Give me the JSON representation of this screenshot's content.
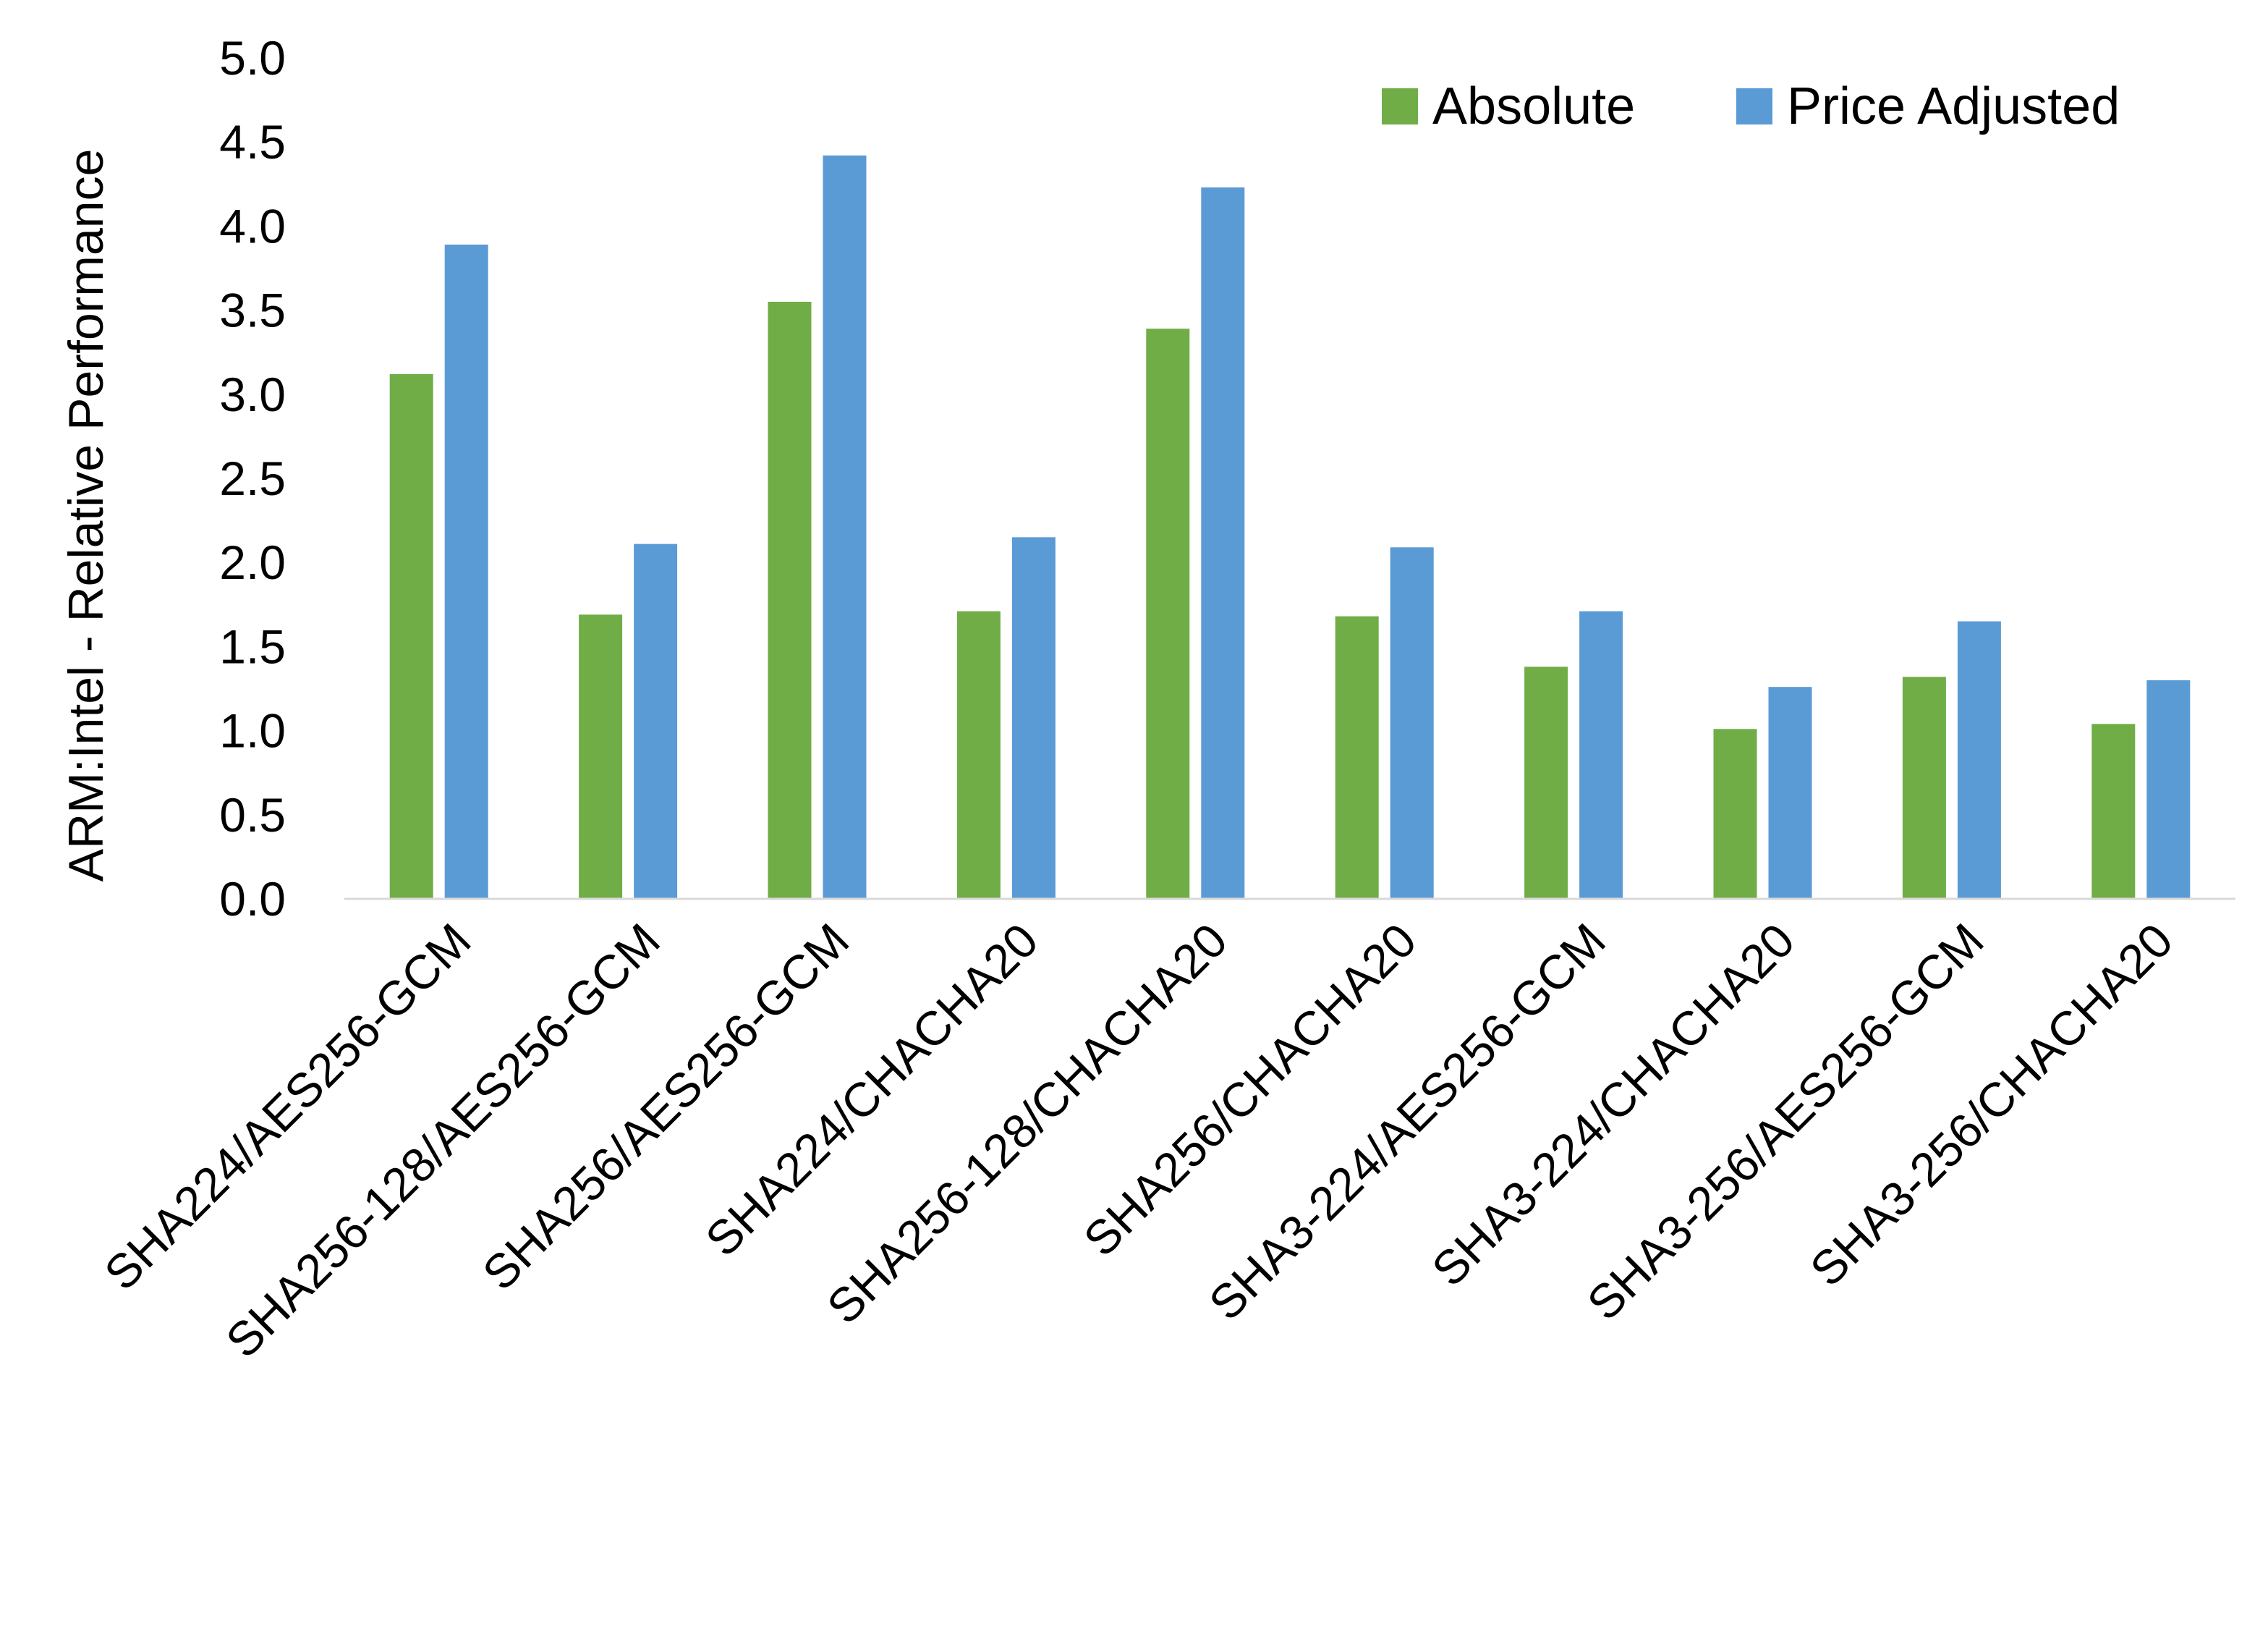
{
  "chart_data": {
    "type": "bar",
    "title": "",
    "xlabel": "",
    "ylabel": "ARM:Intel - Relative Performance",
    "ylim": [
      0,
      5
    ],
    "yticks": [
      "0.0",
      "0.5",
      "1.0",
      "1.5",
      "2.0",
      "2.5",
      "3.0",
      "3.5",
      "4.0",
      "4.5",
      "5.0"
    ],
    "grid": false,
    "legend_position": "top-right",
    "categories": [
      "SHA224/AES256-GCM",
      "SHA256-128/AES256-GCM",
      "SHA256/AES256-GCM",
      "SHA224/CHACHA20",
      "SHA256-128/CHACHA20",
      "SHA256/CHACHA20",
      "SHA3-224/AES256-GCM",
      "SHA3-224/CHACHA20",
      "SHA3-256/AES256-GCM",
      "SHA3-256/CHACHA20"
    ],
    "series": [
      {
        "name": "Absolute",
        "color": "#70AD47",
        "values": [
          3.12,
          1.69,
          3.55,
          1.71,
          3.39,
          1.68,
          1.38,
          1.01,
          1.32,
          1.04
        ]
      },
      {
        "name": "Price Adjusted",
        "color": "#5B9BD5",
        "values": [
          3.89,
          2.11,
          4.42,
          2.15,
          4.23,
          2.09,
          1.71,
          1.26,
          1.65,
          1.3
        ]
      }
    ]
  }
}
